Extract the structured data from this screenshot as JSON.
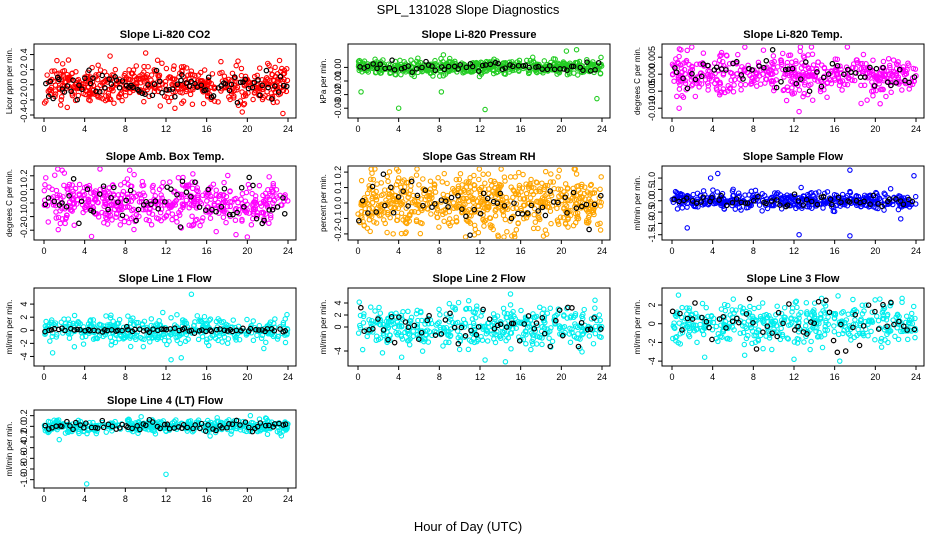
{
  "figure": {
    "title": "SPL_131028  Slope Diagnostics",
    "xlabel": "Hour of Day (UTC)"
  },
  "colors": {
    "co2": "#ff0000",
    "pressure": "#22cc22",
    "magenta": "#ff00ff",
    "orange": "#ffa500",
    "blue": "#0000ff",
    "cyan": "#00eeee",
    "highlight": "#000000"
  },
  "chart_data": [
    {
      "type": "scatter",
      "title": "Slope Li-820 CO2",
      "ylabel": "Licor ppm per min.",
      "xlim": [
        0,
        24
      ],
      "xticks": [
        0,
        4,
        8,
        12,
        16,
        20,
        24
      ],
      "ylim": [
        -0.4,
        0.5
      ],
      "yticks": [
        -0.4,
        -0.2,
        0.0,
        0.2,
        0.4
      ],
      "ytick_labels": [
        "-0.4",
        "-0.2",
        "0.0",
        "0.2",
        "0.4"
      ],
      "color": "co2",
      "n_points": 520,
      "center": 0.0,
      "spread": 0.12,
      "outliers": [
        [
          6.5,
          0.38
        ],
        [
          10,
          0.42
        ],
        [
          19.5,
          -0.36
        ],
        [
          23.5,
          -0.38
        ]
      ],
      "highlight_n": 85,
      "highlight_spread": 0.09
    },
    {
      "type": "scatter",
      "title": "Slope Li-820 Pressure",
      "ylabel": "kPa per min.",
      "xlim": [
        0,
        24
      ],
      "xticks": [
        0,
        4,
        8,
        12,
        16,
        20,
        24
      ],
      "ylim": [
        -0.035,
        0.015
      ],
      "yticks": [
        -0.03,
        -0.02,
        -0.01,
        0.0
      ],
      "ytick_labels": [
        "-0.03",
        "-0.02",
        "-0.01",
        "0.00"
      ],
      "color": "pressure",
      "n_points": 520,
      "center": 0.0,
      "spread": 0.0025,
      "outliers": [
        [
          0.3,
          -0.018
        ],
        [
          8.2,
          -0.018
        ],
        [
          4,
          -0.03
        ],
        [
          12.5,
          -0.031
        ],
        [
          23.5,
          -0.023
        ],
        [
          20.5,
          0.012
        ],
        [
          21.5,
          0.013
        ]
      ],
      "highlight_n": 60,
      "highlight_spread": 0.002
    },
    {
      "type": "scatter",
      "title": "Slope Li-820 Temp.",
      "ylabel": "degrees C per min.",
      "xlim": [
        0,
        24
      ],
      "xticks": [
        0,
        4,
        8,
        12,
        16,
        20,
        24
      ],
      "ylim": [
        -0.012,
        0.008
      ],
      "yticks": [
        -0.01,
        -0.005,
        0.0,
        0.005
      ],
      "ytick_labels": [
        "-0.010",
        "-0.005",
        "0.000",
        "0.005"
      ],
      "color": "magenta",
      "n_points": 480,
      "center": 0.0,
      "spread": 0.003,
      "outliers": [
        [
          1.5,
          0.007
        ],
        [
          12.5,
          -0.011
        ],
        [
          0.7,
          -0.01
        ]
      ],
      "highlight_n": 55,
      "highlight_spread": 0.0025
    },
    {
      "type": "scatter",
      "title": "Slope Amb. Box Temp.",
      "ylabel": "degrees C per min.",
      "xlim": [
        0,
        24
      ],
      "xticks": [
        0,
        4,
        8,
        12,
        16,
        20,
        24
      ],
      "ylim": [
        -0.25,
        0.25
      ],
      "yticks": [
        -0.2,
        -0.1,
        0.0,
        0.1,
        0.2
      ],
      "ytick_labels": [
        "-0.2",
        "-0.1",
        "0.0",
        "0.1",
        "0.2"
      ],
      "color": "magenta",
      "n_points": 500,
      "center": 0.0,
      "spread": 0.09,
      "outliers": [
        [
          20,
          -0.25
        ],
        [
          2,
          0.22
        ]
      ],
      "highlight_n": 60,
      "highlight_spread": 0.08
    },
    {
      "type": "scatter",
      "title": "Slope Gas Stream RH",
      "ylabel": "percent per min.",
      "xlim": [
        0,
        24
      ],
      "xticks": [
        0,
        4,
        8,
        12,
        16,
        20,
        24
      ],
      "ylim": [
        -0.22,
        0.22
      ],
      "yticks": [
        -0.2,
        -0.1,
        0.0,
        0.1,
        0.2
      ],
      "ytick_labels": [
        "-0.2",
        "-0.1",
        "0.0",
        "0.1",
        "0.2"
      ],
      "color": "orange",
      "n_points": 650,
      "center": 0.0,
      "spread": 0.09,
      "outliers": [],
      "highlight_n": 55,
      "highlight_spread": 0.07
    },
    {
      "type": "scatter",
      "title": "Slope Sample Flow",
      "ylabel": "ml/min per min.",
      "xlim": [
        0,
        24
      ],
      "xticks": [
        0,
        4,
        8,
        12,
        16,
        20,
        24
      ],
      "ylim": [
        -1.6,
        1.4
      ],
      "yticks": [
        -1.5,
        -1.0,
        -0.5,
        0.0,
        0.5,
        1.0
      ],
      "ytick_labels": [
        "-1.5",
        "-1.0",
        "-0.5",
        "0.0",
        "0.5",
        "1.0"
      ],
      "color": "blue",
      "n_points": 450,
      "center": 0.0,
      "spread": 0.18,
      "outliers": [
        [
          3.8,
          1.0
        ],
        [
          4.5,
          1.2
        ],
        [
          17.5,
          1.35
        ],
        [
          23.8,
          1.1
        ],
        [
          1.5,
          -1.2
        ],
        [
          12.5,
          -1.5
        ],
        [
          17.5,
          -1.55
        ],
        [
          22.5,
          -0.8
        ]
      ],
      "highlight_n": 55,
      "highlight_spread": 0.12
    },
    {
      "type": "scatter",
      "title": "Slope Line 1 Flow",
      "ylabel": "ml/min per min.",
      "xlim": [
        0,
        24
      ],
      "xticks": [
        0,
        4,
        8,
        12,
        16,
        20,
        24
      ],
      "ylim": [
        -5,
        6
      ],
      "yticks": [
        -4,
        -2,
        0,
        2,
        4
      ],
      "ytick_labels": [
        "-4",
        "-2",
        "0",
        "2",
        "4"
      ],
      "color": "cyan",
      "n_points": 420,
      "center": 0.0,
      "spread": 1.0,
      "outliers": [
        [
          14.5,
          5.5
        ],
        [
          12.5,
          -4.5
        ],
        [
          13.5,
          -4.2
        ]
      ],
      "highlight_n": 70,
      "highlight_spread": 0.15
    },
    {
      "type": "scatter",
      "title": "Slope Line 2 Flow",
      "ylabel": "ml/min per min.",
      "xlim": [
        0,
        24
      ],
      "xticks": [
        0,
        4,
        8,
        12,
        16,
        20,
        24
      ],
      "ylim": [
        -6,
        6
      ],
      "yticks": [
        -4,
        0,
        2,
        4
      ],
      "ytick_labels": [
        "-4",
        "0",
        "2",
        "4"
      ],
      "color": "cyan",
      "n_points": 430,
      "center": 0.0,
      "spread": 1.6,
      "outliers": [
        [
          12.5,
          -5.5
        ],
        [
          14.5,
          -5.8
        ],
        [
          15,
          5.5
        ]
      ],
      "highlight_n": 55,
      "highlight_spread": 1.8
    },
    {
      "type": "scatter",
      "title": "Slope Line 3 Flow",
      "ylabel": "ml/min per min.",
      "xlim": [
        0,
        24
      ],
      "xticks": [
        0,
        4,
        8,
        12,
        16,
        20,
        24
      ],
      "ylim": [
        -4.2,
        3.5
      ],
      "yticks": [
        -4,
        -2,
        0,
        2
      ],
      "ytick_labels": [
        "-4",
        "-2",
        "0",
        "2"
      ],
      "color": "cyan",
      "n_points": 430,
      "center": 0.0,
      "spread": 1.1,
      "outliers": [
        [
          16.5,
          -4.0
        ],
        [
          12,
          -3.8
        ]
      ],
      "highlight_n": 55,
      "highlight_spread": 1.2
    },
    {
      "type": "scatter",
      "title": "Slope Line 4 (LT) Flow",
      "ylabel": "ml/min per min.",
      "xlim": [
        0,
        24
      ],
      "xticks": [
        0,
        4,
        8,
        12,
        16,
        20,
        24
      ],
      "ylim": [
        -1.1,
        0.25
      ],
      "yticks": [
        -1.0,
        -0.8,
        -0.6,
        -0.4,
        -0.2,
        0.0,
        0.2
      ],
      "ytick_labels": [
        "-1.0",
        "-0.8",
        "-0.6",
        "-0.4",
        "-0.2",
        "0.0",
        "0.2"
      ],
      "color": "cyan",
      "n_points": 420,
      "center": 0.0,
      "spread": 0.06,
      "outliers": [
        [
          4.2,
          -1.08
        ],
        [
          12,
          -0.9
        ],
        [
          1.5,
          -0.25
        ],
        [
          20.3,
          0.2
        ]
      ],
      "highlight_n": 70,
      "highlight_spread": 0.05
    }
  ]
}
